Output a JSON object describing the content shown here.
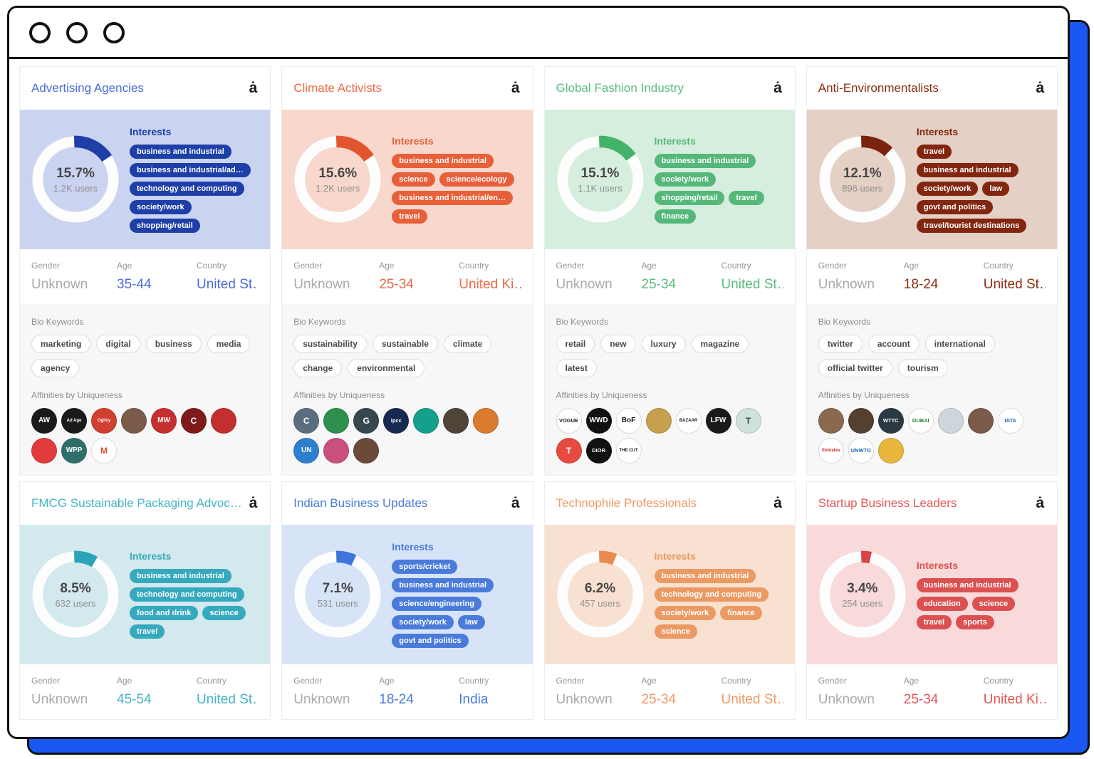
{
  "labels": {
    "interests": "Interests",
    "gender": "Gender",
    "age": "Age",
    "country": "Country",
    "bio_keywords": "Bio Keywords",
    "affinities": "Affinities by Uniqueness"
  },
  "cards": [
    {
      "title": "Advertising Agencies",
      "percent": "15.7%",
      "percent_value": 15.7,
      "users": "1.2K users",
      "gender": "Unknown",
      "age": "35-44",
      "country": "United St…",
      "interests": [
        "business and industrial",
        "business and industrial/ad…",
        "technology and computing",
        "society/work",
        "shopping/retail"
      ],
      "bio_keywords": [
        "marketing",
        "digital",
        "business",
        "media",
        "agency"
      ],
      "affinities": [
        {
          "label": "AW",
          "bg": "#1a1a1a",
          "fg": "#ffffff"
        },
        {
          "label": "Ad Age",
          "bg": "#1a1a1a",
          "fg": "#ffffff"
        },
        {
          "label": "Ogilvy",
          "bg": "#d0402e",
          "fg": "#ffffff"
        },
        {
          "label": "",
          "bg": "#7a5b49",
          "fg": "#ffffff"
        },
        {
          "label": "MW",
          "bg": "#c62f2f",
          "fg": "#ffffff"
        },
        {
          "label": "C",
          "bg": "#7e1a1a",
          "fg": "#ffffff"
        },
        {
          "label": "",
          "bg": "#c22f2f",
          "fg": "#ffffff"
        },
        {
          "label": "",
          "bg": "#e23b3b",
          "fg": "#ffffff"
        },
        {
          "label": "WPP",
          "bg": "#2f6f6a",
          "fg": "#ffffff"
        },
        {
          "label": "M",
          "bg": "#ffffff",
          "fg": "#e2502f"
        }
      ],
      "colors": {
        "accent": "#4b6bd8",
        "section_bg": "#cad3ef",
        "pill_bg": "#1e3ea8",
        "arc": "#1e3ea8"
      }
    },
    {
      "title": "Climate Activists",
      "percent": "15.6%",
      "percent_value": 15.6,
      "users": "1.2K users",
      "gender": "Unknown",
      "age": "25-34",
      "country": "United Ki…",
      "interests": [
        "business and industrial",
        "science",
        "science/ecology",
        "business and industrial/en…",
        "travel"
      ],
      "bio_keywords": [
        "sustainability",
        "sustainable",
        "climate",
        "change",
        "environmental"
      ],
      "affinities": [
        {
          "label": "C",
          "bg": "#5a6e7f",
          "fg": "#ffffff"
        },
        {
          "label": "",
          "bg": "#2f8f4e",
          "fg": "#ffffff"
        },
        {
          "label": "G",
          "bg": "#37474f",
          "fg": "#ffffff"
        },
        {
          "label": "ipcc",
          "bg": "#16294f",
          "fg": "#ffffff"
        },
        {
          "label": "",
          "bg": "#14a08a",
          "fg": "#ffffff"
        },
        {
          "label": "",
          "bg": "#4e4438",
          "fg": "#ffffff"
        },
        {
          "label": "",
          "bg": "#d97b2d",
          "fg": "#ffffff"
        },
        {
          "label": "UN",
          "bg": "#2f7fd0",
          "fg": "#ffffff"
        },
        {
          "label": "",
          "bg": "#c94f7c",
          "fg": "#ffffff"
        },
        {
          "label": "",
          "bg": "#6b4a3a",
          "fg": "#ffffff"
        }
      ],
      "colors": {
        "accent": "#ed6a45",
        "section_bg": "#f8d8cc",
        "pill_bg": "#e8603a",
        "arc": "#e2552f"
      }
    },
    {
      "title": "Global Fashion Industry",
      "percent": "15.1%",
      "percent_value": 15.1,
      "users": "1.1K users",
      "gender": "Unknown",
      "age": "25-34",
      "country": "United St…",
      "interests": [
        "business and industrial",
        "society/work",
        "shopping/retail",
        "travel",
        "finance"
      ],
      "bio_keywords": [
        "retail",
        "new",
        "luxury",
        "magazine",
        "latest"
      ],
      "affinities": [
        {
          "label": "VOGUE",
          "bg": "#ffffff",
          "fg": "#1a1a1a"
        },
        {
          "label": "WWD",
          "bg": "#111111",
          "fg": "#ffffff"
        },
        {
          "label": "BoF",
          "bg": "#ffffff",
          "fg": "#1a1a1a"
        },
        {
          "label": "",
          "bg": "#c5a14e",
          "fg": "#ffffff"
        },
        {
          "label": "BAZAAR",
          "bg": "#ffffff",
          "fg": "#1a1a1a"
        },
        {
          "label": "LFW",
          "bg": "#1a1a1a",
          "fg": "#ffffff"
        },
        {
          "label": "T",
          "bg": "#cfe3db",
          "fg": "#444444"
        },
        {
          "label": "T",
          "bg": "#e84a3f",
          "fg": "#ffffff"
        },
        {
          "label": "DIOR",
          "bg": "#111111",
          "fg": "#ffffff"
        },
        {
          "label": "THE CUT",
          "bg": "#ffffff",
          "fg": "#1a1a1a"
        }
      ],
      "colors": {
        "accent": "#5abc7e",
        "section_bg": "#d6eedd",
        "pill_bg": "#55b87a",
        "arc": "#43b36a"
      }
    },
    {
      "title": "Anti-Environmentalists",
      "percent": "12.1%",
      "percent_value": 12.1,
      "users": "896 users",
      "gender": "Unknown",
      "age": "18-24",
      "country": "United St…",
      "interests": [
        "travel",
        "business and industrial",
        "society/work",
        "law",
        "govt and politics",
        "travel/tourist destinations"
      ],
      "bio_keywords": [
        "twitter",
        "account",
        "international",
        "official twitter",
        "tourism"
      ],
      "affinities": [
        {
          "label": "",
          "bg": "#8a6a4f",
          "fg": "#ffffff"
        },
        {
          "label": "",
          "bg": "#55402f",
          "fg": "#ffffff"
        },
        {
          "label": "WTTC",
          "bg": "#2b3a42",
          "fg": "#ffffff"
        },
        {
          "label": "DUBAI",
          "bg": "#ffffff",
          "fg": "#2e7d32"
        },
        {
          "label": "",
          "bg": "#cdd6da",
          "fg": "#555555"
        },
        {
          "label": "",
          "bg": "#7a5b49",
          "fg": "#ffffff"
        },
        {
          "label": "IATA",
          "bg": "#ffffff",
          "fg": "#1a63b0"
        },
        {
          "label": "Emirates",
          "bg": "#ffffff",
          "fg": "#c62828"
        },
        {
          "label": "UNWTO",
          "bg": "#ffffff",
          "fg": "#1a63b0"
        },
        {
          "label": "",
          "bg": "#e8b63a",
          "fg": "#ffffff"
        }
      ],
      "colors": {
        "accent": "#8c2c12",
        "section_bg": "#e4d0c4",
        "pill_bg": "#82260f",
        "arc": "#7c2310"
      }
    },
    {
      "title": "FMCG Sustainable Packaging Advocates",
      "percent": "8.5%",
      "percent_value": 8.5,
      "users": "632 users",
      "gender": "Unknown",
      "age": "45-54",
      "country": "United St…",
      "interests": [
        "business and industrial",
        "technology and computing",
        "food and drink",
        "science",
        "travel"
      ],
      "colors": {
        "accent": "#45b4c6",
        "section_bg": "#d3e9ed",
        "pill_bg": "#35a9bd",
        "arc": "#2ba4ba"
      }
    },
    {
      "title": "Indian Business Updates",
      "percent": "7.1%",
      "percent_value": 7.1,
      "users": "531 users",
      "gender": "Unknown",
      "age": "18-24",
      "country": "India",
      "interests": [
        "sports/cricket",
        "business and industrial",
        "science/engineering",
        "society/work",
        "law",
        "govt and politics"
      ],
      "colors": {
        "accent": "#4a7bdb",
        "section_bg": "#d7e3f7",
        "pill_bg": "#4a7bdb",
        "arc": "#3f74dc"
      }
    },
    {
      "title": "Technophile Professionals",
      "percent": "6.2%",
      "percent_value": 6.2,
      "users": "457 users",
      "gender": "Unknown",
      "age": "25-34",
      "country": "United St…",
      "interests": [
        "business and industrial",
        "technology and computing",
        "society/work",
        "finance",
        "science"
      ],
      "colors": {
        "accent": "#ef9a62",
        "section_bg": "#f8e1d0",
        "pill_bg": "#eb9a63",
        "arc": "#e98a4e"
      }
    },
    {
      "title": "Startup Business Leaders",
      "percent": "3.4%",
      "percent_value": 3.4,
      "users": "254 users",
      "gender": "Unknown",
      "age": "25-34",
      "country": "United Ki…",
      "interests": [
        "business and industrial",
        "education",
        "science",
        "travel",
        "sports"
      ],
      "colors": {
        "accent": "#e45555",
        "section_bg": "#f9dada",
        "pill_bg": "#db5151",
        "arc": "#d84343"
      }
    }
  ]
}
